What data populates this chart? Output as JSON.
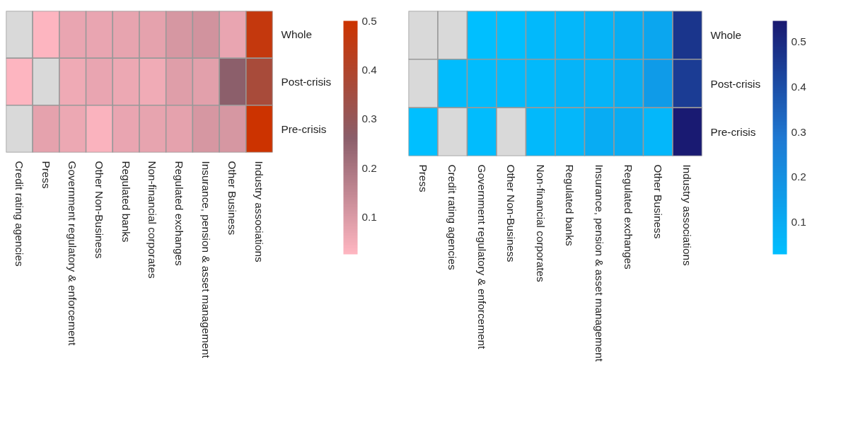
{
  "chart_data": [
    {
      "type": "heatmap",
      "categories": [
        "Credit rating agencies",
        "Press",
        "Government regulatory & enforcement",
        "Other Non-Business",
        "Regulated banks",
        "Non-financial corporates",
        "Regulated exchanges",
        "Insurance, pension & asset management",
        "Other Business",
        "Industry associations"
      ],
      "y_categories": [
        "Whole",
        "Post-crisis",
        "Pre-crisis"
      ],
      "cells": [
        [
          null,
          0.03,
          0.07,
          0.07,
          0.075,
          0.08,
          0.11,
          0.12,
          0.07,
          0.47
        ],
        [
          0.03,
          null,
          0.06,
          0.07,
          0.065,
          0.055,
          0.09,
          0.085,
          0.26,
          0.37
        ],
        [
          null,
          0.08,
          0.065,
          0.035,
          0.07,
          0.075,
          0.08,
          0.11,
          0.11,
          0.5
        ]
      ],
      "clim": [
        0.025,
        0.5
      ],
      "cticks": [
        0.1,
        0.2,
        0.3,
        0.4,
        0.5
      ],
      "colors": [
        "#ffb6c1",
        "#8b5e6a",
        "#cc3300"
      ]
    },
    {
      "type": "heatmap",
      "categories": [
        "Press",
        "Credit rating agencies",
        "Government regulatory & enforcement",
        "Other Non-Business",
        "Non-financial corporates",
        "Regulated banks",
        "Insurance, pension & asset management",
        "Regulated exchanges",
        "Other Business",
        "Industry associations"
      ],
      "y_categories": [
        "Whole",
        "Post-crisis",
        "Pre-crisis"
      ],
      "cells": [
        [
          null,
          null,
          0.03,
          0.03,
          0.05,
          0.06,
          0.07,
          0.09,
          0.12,
          0.47
        ],
        [
          null,
          0.04,
          0.04,
          0.045,
          0.05,
          0.07,
          0.07,
          0.09,
          0.16,
          0.45
        ],
        [
          0.03,
          null,
          0.04,
          null,
          0.05,
          0.06,
          0.1,
          0.1,
          0.06,
          0.54
        ]
      ],
      "clim": [
        0.029,
        0.546
      ],
      "cticks": [
        0.1,
        0.2,
        0.3,
        0.4,
        0.5
      ],
      "colors": [
        "#00bfff",
        "#1e78d2",
        "#191970"
      ]
    }
  ]
}
